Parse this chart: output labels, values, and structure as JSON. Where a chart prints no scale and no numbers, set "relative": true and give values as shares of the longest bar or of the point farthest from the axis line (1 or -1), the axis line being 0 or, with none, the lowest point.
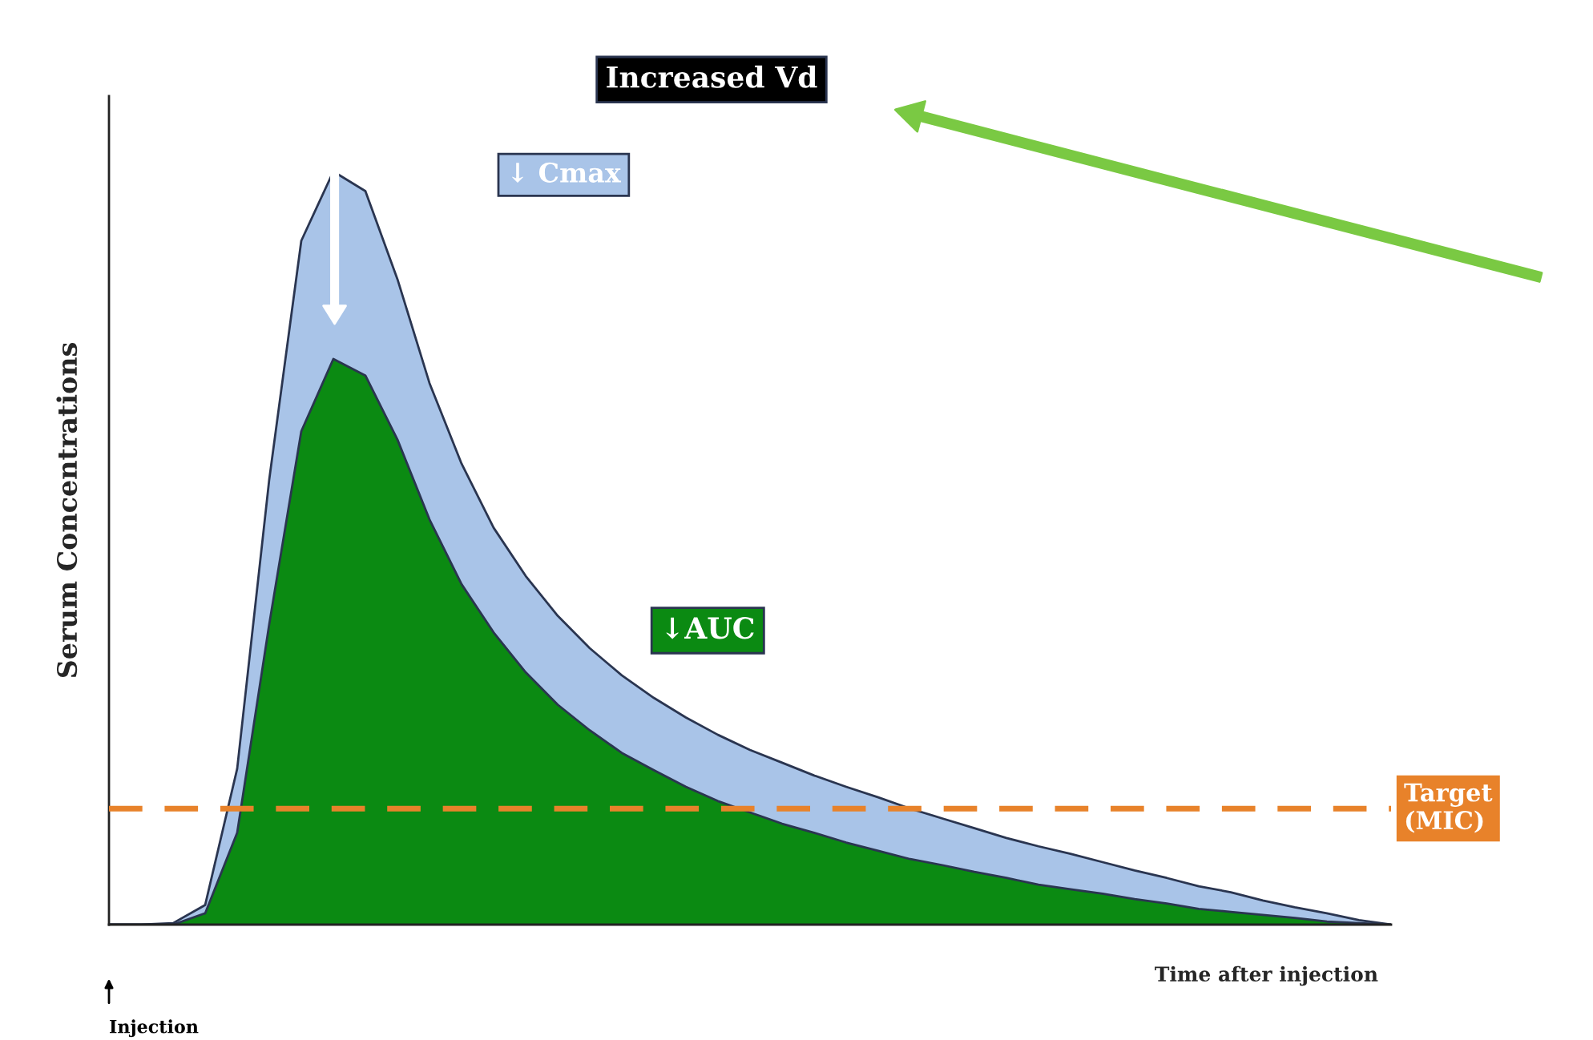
{
  "chart_data": {
    "type": "area",
    "relative": true,
    "xlabel": "Time after injection",
    "ylabel": "Serum Concentrations",
    "legend": false,
    "categories": [
      null,
      null,
      null,
      null,
      null,
      null,
      null,
      null,
      null,
      null,
      null,
      null,
      null,
      null,
      null,
      null,
      null,
      null,
      null,
      null,
      null,
      null,
      null,
      null,
      null,
      null,
      null,
      null,
      null,
      null,
      null,
      null,
      null,
      null,
      null,
      null,
      null,
      null,
      null,
      null,
      null
    ],
    "series": [
      {
        "color": "#a9c4e8",
        "values": [
          0,
          0,
          0.002,
          0.026,
          0.207,
          0.591,
          0.908,
          1,
          0.974,
          0.857,
          0.719,
          0.612,
          0.527,
          0.463,
          0.41,
          0.367,
          0.331,
          0.301,
          0.275,
          0.252,
          0.232,
          0.215,
          0.198,
          0.183,
          0.169,
          0.154,
          0.141,
          0.128,
          0.115,
          0.104,
          0.094,
          0.083,
          0.072,
          0.062,
          0.051,
          0.043,
          0.032,
          0.023,
          0.015,
          0.006,
          0
        ]
      },
      {
        "color": "#0b8a12",
        "values": [
          0,
          0,
          0,
          0.015,
          0.122,
          0.399,
          0.655,
          0.751,
          0.729,
          0.644,
          0.538,
          0.452,
          0.388,
          0.335,
          0.292,
          0.258,
          0.228,
          0.205,
          0.183,
          0.164,
          0.149,
          0.134,
          0.122,
          0.109,
          0.098,
          0.087,
          0.079,
          0.07,
          0.062,
          0.053,
          0.047,
          0.041,
          0.034,
          0.028,
          0.021,
          0.017,
          0.013,
          0.009,
          0.004,
          0.002,
          0
        ]
      }
    ],
    "ref_lines": [
      {
        "axis": "y",
        "value": 0.154,
        "label": "Target\n(MIC)",
        "color": "#e8822a",
        "line_style": "dashed"
      }
    ],
    "annotations": [
      "Increased Vd",
      "↓ Cmax",
      "↓AUC",
      "Injection"
    ]
  }
}
